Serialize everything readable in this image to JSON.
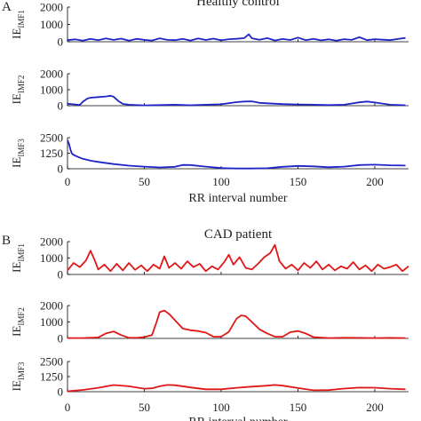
{
  "chart_data": [
    {
      "type": "line",
      "panel_label": "A",
      "title": "Healthy control",
      "color": "#1f24c8",
      "xlabel": "RR interval number",
      "xlim": [
        0,
        222
      ],
      "xticks": [
        0,
        50,
        100,
        150,
        200
      ],
      "subplots": [
        {
          "ylabel": "IE",
          "ylabel_sub": "IMF1",
          "ylim": [
            0,
            2000
          ],
          "yticks": [
            0,
            1000,
            2000
          ],
          "series": [
            {
              "x": [
                0,
                5,
                10,
                15,
                20,
                25,
                30,
                35,
                40,
                45,
                50,
                55,
                60,
                65,
                70,
                75,
                80,
                85,
                90,
                95,
                100,
                105,
                110,
                115,
                118,
                120,
                125,
                130,
                135,
                140,
                145,
                150,
                155,
                160,
                165,
                170,
                175,
                180,
                185,
                190,
                195,
                200,
                205,
                210,
                215,
                220
              ],
              "values": [
                90,
                140,
                60,
                170,
                90,
                190,
                110,
                180,
                60,
                170,
                110,
                70,
                200,
                110,
                90,
                170,
                70,
                190,
                100,
                180,
                80,
                150,
                170,
                210,
                430,
                200,
                120,
                210,
                70,
                160,
                100,
                240,
                90,
                170,
                80,
                140,
                60,
                150,
                110,
                260,
                90,
                150,
                120,
                90,
                160,
                220
              ]
            }
          ]
        },
        {
          "ylabel": "IE",
          "ylabel_sub": "IMF2",
          "ylim": [
            0,
            2000
          ],
          "yticks": [
            0,
            1000,
            2000
          ],
          "series": [
            {
              "x": [
                0,
                5,
                8,
                10,
                13,
                15,
                20,
                25,
                28,
                30,
                33,
                36,
                40,
                45,
                50,
                60,
                70,
                80,
                90,
                100,
                110,
                115,
                120,
                125,
                130,
                140,
                150,
                160,
                170,
                180,
                190,
                195,
                200,
                210,
                220
              ],
              "values": [
                120,
                80,
                50,
                250,
                450,
                500,
                540,
                580,
                620,
                560,
                300,
                110,
                60,
                40,
                20,
                40,
                60,
                30,
                60,
                90,
                220,
                260,
                270,
                180,
                150,
                100,
                80,
                60,
                40,
                60,
                210,
                260,
                200,
                60,
                30
              ]
            }
          ]
        },
        {
          "ylabel": "IE",
          "ylabel_sub": "IMF3",
          "ylim": [
            0,
            2500
          ],
          "yticks": [
            0,
            1250,
            2500
          ],
          "series": [
            {
              "x": [
                0,
                1,
                2,
                3,
                5,
                8,
                10,
                15,
                20,
                30,
                40,
                50,
                60,
                70,
                75,
                80,
                90,
                100,
                110,
                120,
                130,
                140,
                150,
                160,
                170,
                180,
                190,
                200,
                210,
                220
              ],
              "values": [
                2300,
                2000,
                1500,
                1200,
                1050,
                900,
                800,
                650,
                550,
                380,
                250,
                170,
                110,
                160,
                310,
                300,
                170,
                60,
                20,
                20,
                40,
                160,
                230,
                190,
                120,
                170,
                300,
                330,
                280,
                260
              ]
            }
          ]
        }
      ]
    },
    {
      "type": "line",
      "panel_label": "B",
      "title": "CAD patient",
      "color": "#e01717",
      "xlabel": "RR interval number",
      "xlim": [
        0,
        222
      ],
      "xticks": [
        0,
        50,
        100,
        150,
        200
      ],
      "subplots": [
        {
          "ylabel": "IE",
          "ylabel_sub": "IMF1",
          "ylim": [
            0,
            2000
          ],
          "yticks": [
            0,
            1000,
            2000
          ],
          "series": [
            {
              "x": [
                0,
                4,
                8,
                12,
                15,
                18,
                20,
                24,
                28,
                32,
                36,
                40,
                44,
                48,
                52,
                56,
                60,
                63,
                66,
                70,
                74,
                78,
                82,
                86,
                90,
                94,
                98,
                102,
                105,
                108,
                112,
                116,
                120,
                124,
                128,
                132,
                135,
                138,
                142,
                146,
                150,
                154,
                158,
                162,
                166,
                170,
                174,
                178,
                182,
                186,
                190,
                194,
                198,
                202,
                206,
                210,
                214,
                218,
                222
              ],
              "values": [
                250,
                700,
                450,
                850,
                1450,
                800,
                300,
                600,
                200,
                650,
                250,
                700,
                280,
                550,
                200,
                600,
                350,
                1100,
                400,
                700,
                350,
                800,
                450,
                650,
                200,
                500,
                300,
                750,
                1200,
                600,
                1050,
                400,
                300,
                650,
                1050,
                1300,
                1800,
                800,
                350,
                600,
                250,
                700,
                400,
                800,
                300,
                600,
                250,
                500,
                350,
                750,
                300,
                550,
                200,
                600,
                350,
                450,
                600,
                200,
                500
              ]
            }
          ]
        },
        {
          "ylabel": "IE",
          "ylabel_sub": "IMF2",
          "ylim": [
            0,
            2000
          ],
          "yticks": [
            0,
            1000,
            2000
          ],
          "series": [
            {
              "x": [
                0,
                10,
                20,
                25,
                30,
                35,
                40,
                45,
                50,
                55,
                58,
                60,
                63,
                66,
                70,
                75,
                80,
                85,
                90,
                95,
                100,
                105,
                110,
                113,
                116,
                120,
                125,
                130,
                135,
                140,
                145,
                150,
                155,
                160,
                170,
                180,
                190,
                200,
                210,
                220
              ],
              "values": [
                20,
                20,
                60,
                300,
                420,
                200,
                40,
                30,
                80,
                200,
                1000,
                1600,
                1700,
                1500,
                1100,
                600,
                500,
                450,
                350,
                100,
                100,
                400,
                1200,
                1400,
                1350,
                1000,
                550,
                300,
                100,
                100,
                380,
                450,
                300,
                80,
                20,
                40,
                30,
                20,
                30,
                20
              ]
            }
          ]
        },
        {
          "ylabel": "IE",
          "ylabel_sub": "IMF3",
          "ylim": [
            0,
            2500
          ],
          "yticks": [
            0,
            1250,
            2500
          ],
          "series": [
            {
              "x": [
                0,
                10,
                20,
                30,
                40,
                50,
                55,
                60,
                65,
                70,
                80,
                90,
                100,
                110,
                120,
                130,
                135,
                140,
                150,
                160,
                170,
                180,
                190,
                200,
                210,
                220
              ],
              "values": [
                40,
                150,
                320,
                550,
                450,
                250,
                280,
                450,
                560,
                540,
                350,
                200,
                200,
                320,
                420,
                500,
                560,
                500,
                300,
                120,
                130,
                260,
                340,
                330,
                250,
                200
              ]
            }
          ]
        }
      ]
    }
  ]
}
